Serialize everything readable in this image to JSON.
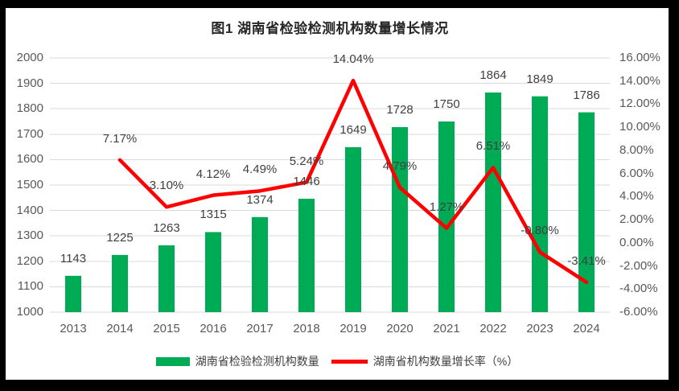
{
  "title": "图1 湖南省检验检测机构数量增长情况",
  "colors": {
    "background": "#000000",
    "panel": "#FFFFFF",
    "bar": "#00AB56",
    "line": "#FE0000",
    "grid": "#D9D9D9",
    "tick_text": "#595959",
    "label_text": "#404040",
    "title_text": "#262626"
  },
  "legend": {
    "items": [
      {
        "type": "bar",
        "label": "湖南省检验检测机构数量"
      },
      {
        "type": "line",
        "label": "湖南省机构数量增长率（%）"
      }
    ]
  },
  "chart_data": {
    "type": "combo-bar-line",
    "title": "图1 湖南省检验检测机构数量增长情况",
    "categories": [
      "2013",
      "2014",
      "2015",
      "2016",
      "2017",
      "2018",
      "2019",
      "2020",
      "2021",
      "2022",
      "2023",
      "2024"
    ],
    "series": [
      {
        "name": "湖南省检验检测机构数量",
        "type": "bar",
        "axis": "left",
        "values": [
          1143,
          1225,
          1263,
          1315,
          1374,
          1446,
          1649,
          1728,
          1750,
          1864,
          1849,
          1786
        ],
        "data_labels": [
          "1143",
          "1225",
          "1263",
          "1315",
          "1374",
          "1446",
          "1649",
          "1728",
          "1750",
          "1864",
          "1849",
          "1786"
        ]
      },
      {
        "name": "湖南省机构数量增长率（%）",
        "type": "line",
        "axis": "right",
        "values": [
          null,
          7.17,
          3.1,
          4.12,
          4.49,
          5.24,
          14.04,
          4.79,
          1.27,
          6.51,
          -0.8,
          -3.41
        ],
        "data_labels": [
          null,
          "7.17%",
          "3.10%",
          "4.12%",
          "4.49%",
          "5.24%",
          "14.04%",
          "4.79%",
          "1.27%",
          "6.51%",
          "-0.80%",
          "-3.41%"
        ]
      }
    ],
    "left_axis": {
      "min": 1000,
      "max": 2000,
      "step": 100,
      "ticks": [
        "2000",
        "1900",
        "1800",
        "1700",
        "1600",
        "1500",
        "1400",
        "1300",
        "1200",
        "1100",
        "1000"
      ]
    },
    "right_axis": {
      "min": -6,
      "max": 16,
      "step": 2,
      "ticks": [
        "16.00%",
        "14.00%",
        "12.00%",
        "10.00%",
        "8.00%",
        "6.00%",
        "4.00%",
        "2.00%",
        "0.00%",
        "-2.00%",
        "-4.00%",
        "-6.00%"
      ]
    },
    "grid": true,
    "legend_position": "bottom"
  }
}
